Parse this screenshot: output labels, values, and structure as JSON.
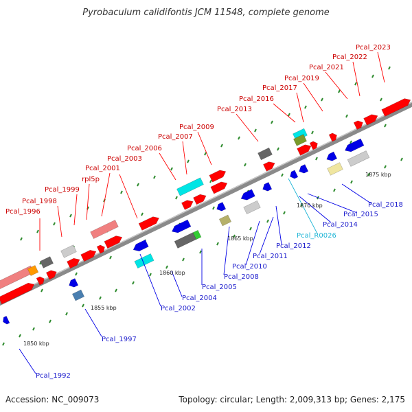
{
  "title": "Pyrobaculum calidifontis JCM 11548, complete genome",
  "accession": "Accession: NC_009073",
  "summary": "Topology: circular; Length: 2,009,313 bp; Genes: 2,175",
  "colors": {
    "forward": "#ff0000",
    "reverse": "#0000e6",
    "label_forward": "#cc0000",
    "label_reverse": "#1a1acc",
    "label_rna": "#1fb5d6",
    "backbone": "#7a7a7a",
    "tick": "#2e8b2e"
  },
  "scale_labels": [
    "1850 kbp",
    "1855 kbp",
    "1860 kbp",
    "1865 kbp",
    "1870 kbp",
    "1875 kbp"
  ],
  "top_labels": [
    "Pcal_1996",
    "Pcal_1998",
    "Pcal_1999",
    "rpl5p",
    "Pcal_2001",
    "Pcal_2003",
    "Pcal_2006",
    "Pcal_2007",
    "Pcal_2009",
    "Pcal_2013",
    "Pcal_2016",
    "Pcal_2017",
    "Pcal_2019",
    "Pcal_2021",
    "Pcal_2022",
    "Pcal_2023"
  ],
  "bottom_labels": [
    "Pcal_1992",
    "Pcal_1997",
    "Pcal_2002",
    "Pcal_2004",
    "Pcal_2005",
    "Pcal_2008",
    "Pcal_2010",
    "Pcal_2011",
    "Pcal_2012",
    "Pcal_R0026",
    "Pcal_2014",
    "Pcal_2015",
    "Pcal_2018"
  ]
}
